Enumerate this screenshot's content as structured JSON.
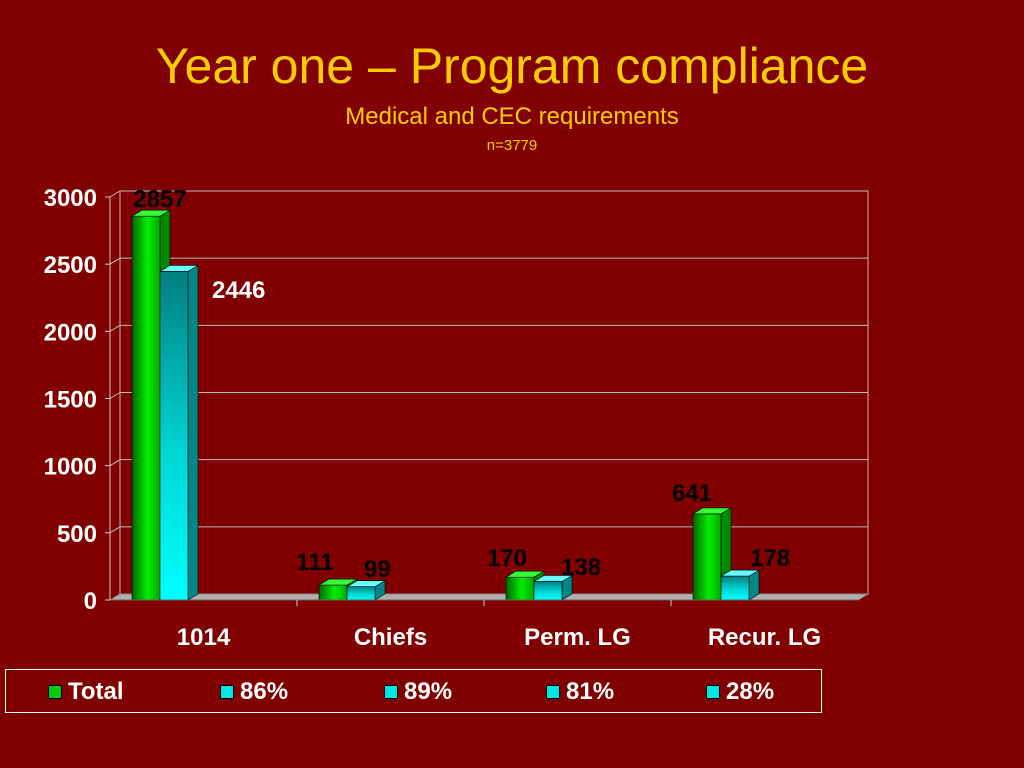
{
  "slide": {
    "title": "Year one – Program compliance",
    "subtitle": "Medical and CEC requirements",
    "note": "n=3779"
  },
  "colors": {
    "background": "#800000",
    "title": "#FFCC00",
    "green_series": "#00CC00",
    "cyan_series": "#00E5E5",
    "axis_text": "#ffffff",
    "label_text": "#000000"
  },
  "chart_data": {
    "type": "bar",
    "categories": [
      "1014",
      "Chiefs",
      "Perm. LG",
      "Recur. LG"
    ],
    "series": [
      {
        "name": "Total",
        "values": [
          2857,
          111,
          170,
          641
        ]
      },
      {
        "name": "86% / 89% / 81% / 28%",
        "values": [
          2446,
          99,
          138,
          178
        ]
      }
    ],
    "data_labels": {
      "green": [
        "2857",
        "111",
        "170",
        "641"
      ],
      "cyan": [
        "2446",
        "99",
        "138",
        "178"
      ]
    },
    "yticks": [
      "0",
      "500",
      "1000",
      "1500",
      "2000",
      "2500",
      "3000"
    ],
    "ylim": [
      0,
      3000
    ],
    "grid": true,
    "legend_position": "bottom"
  },
  "legend": {
    "items": [
      {
        "label": "Total",
        "color": "#00CC00"
      },
      {
        "label": "86%",
        "color": "#00E5E5"
      },
      {
        "label": "89%",
        "color": "#00E5E5"
      },
      {
        "label": "81%",
        "color": "#00E5E5"
      },
      {
        "label": "28%",
        "color": "#00E5E5"
      }
    ]
  }
}
